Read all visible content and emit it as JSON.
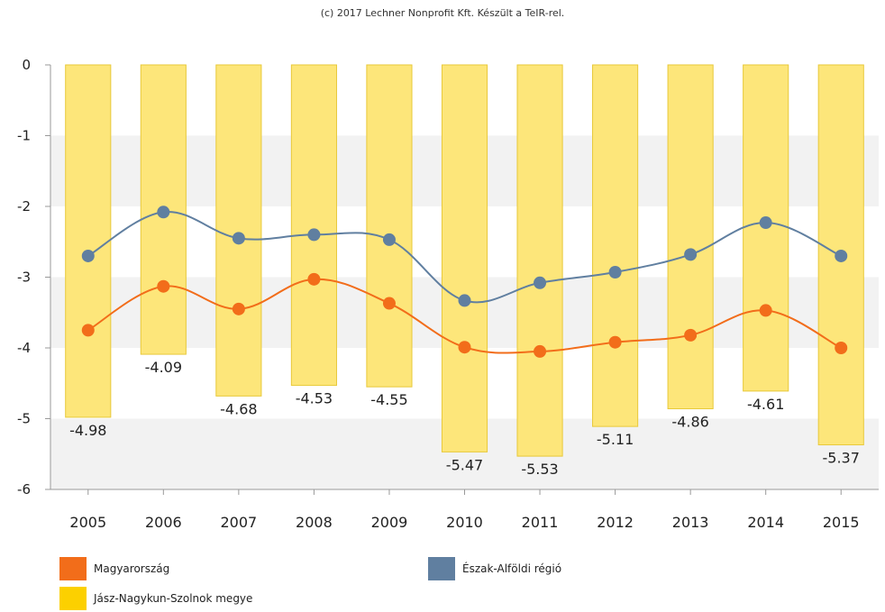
{
  "credit": "(c) 2017 Lechner Nonprofit Kft. Készült a TeIR-rel.",
  "chart_data": {
    "type": "bar",
    "categories": [
      "2005",
      "2006",
      "2007",
      "2008",
      "2009",
      "2010",
      "2011",
      "2012",
      "2013",
      "2014",
      "2015"
    ],
    "ylim": [
      -6,
      0
    ],
    "yticks": [
      0,
      -1,
      -2,
      -3,
      -4,
      -5,
      -6
    ],
    "grid": true,
    "legend_position": "bottom",
    "series": [
      {
        "name": "Jász-Nagykun-Szolnok megye",
        "kind": "bar",
        "color": "#fde67a",
        "border": "#e8c93a",
        "values": [
          -4.98,
          -4.09,
          -4.68,
          -4.53,
          -4.55,
          -5.47,
          -5.53,
          -5.11,
          -4.86,
          -4.61,
          -5.37
        ],
        "labels": [
          "-4.98",
          "-4.09",
          "-4.68",
          "-4.53",
          "-4.55",
          "-5.47",
          "-5.53",
          "-5.11",
          "-4.86",
          "-4.61",
          "-5.37"
        ]
      },
      {
        "name": "Magyarország",
        "kind": "line",
        "color": "#f26d1a",
        "values": [
          -3.75,
          -3.13,
          -3.45,
          -3.03,
          -3.37,
          -3.99,
          -4.05,
          -3.92,
          -3.82,
          -3.47,
          -4.0
        ]
      },
      {
        "name": "Észak-Alföldi régió",
        "kind": "line",
        "color": "#607fa0",
        "values": [
          -2.7,
          -2.08,
          -2.45,
          -2.4,
          -2.47,
          -3.33,
          -3.08,
          -2.93,
          -2.68,
          -2.23,
          -2.7
        ]
      }
    ]
  },
  "legend": [
    {
      "label": "Magyarország",
      "color": "#f26d1a"
    },
    {
      "label": "Észak-Alföldi régió",
      "color": "#607fa0"
    },
    {
      "label": "Jász-Nagykun-Szolnok megye",
      "color": "#fcd000"
    }
  ]
}
